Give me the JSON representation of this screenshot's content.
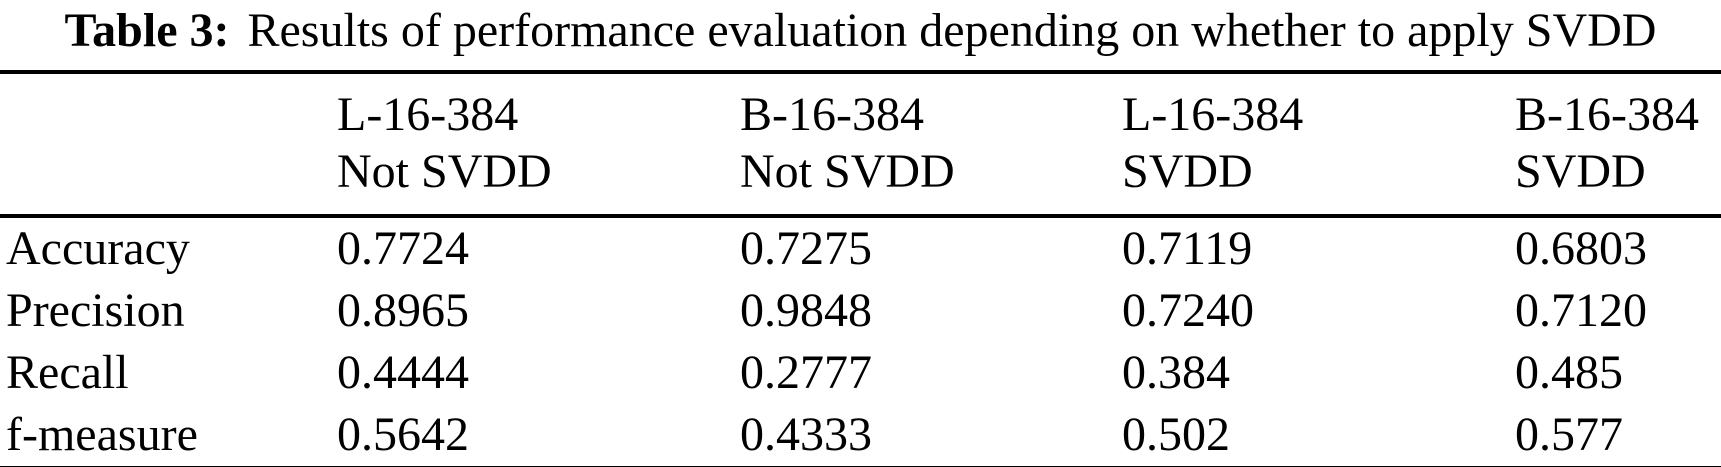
{
  "caption": {
    "label": "Table 3:",
    "text": "Results of performance evaluation depending on whether to apply SVDD"
  },
  "table": {
    "columns": [
      {
        "model": "",
        "condition": ""
      },
      {
        "model": "L-16-384",
        "condition": "Not SVDD"
      },
      {
        "model": "B-16-384",
        "condition": "Not SVDD"
      },
      {
        "model": "L-16-384",
        "condition": "SVDD"
      },
      {
        "model": "B-16-384",
        "condition": "SVDD"
      }
    ],
    "rows": [
      {
        "label": "Accuracy",
        "values": [
          "0.7724",
          "0.7275",
          "0.7119",
          "0.6803"
        ]
      },
      {
        "label": "Precision",
        "values": [
          "0.8965",
          "0.9848",
          "0.7240",
          "0.7120"
        ]
      },
      {
        "label": "Recall",
        "values": [
          "0.4444",
          "0.2777",
          "0.384",
          "0.485"
        ]
      },
      {
        "label": "f-measure",
        "values": [
          "0.5642",
          "0.4333",
          "0.502",
          "0.577"
        ]
      }
    ]
  },
  "colors": {
    "text": "#000000",
    "background": "#ffffff",
    "rule": "#000000"
  },
  "chart_data": {
    "type": "table",
    "title": "Table 3: Results of performance evaluation depending on whether to apply SVDD",
    "columns": [
      "",
      "L-16-384 Not SVDD",
      "B-16-384 Not SVDD",
      "L-16-384 SVDD",
      "B-16-384 SVDD"
    ],
    "rows": [
      [
        "Accuracy",
        "0.7724",
        "0.7275",
        "0.7119",
        "0.6803"
      ],
      [
        "Precision",
        "0.8965",
        "0.9848",
        "0.7240",
        "0.7120"
      ],
      [
        "Recall",
        "0.4444",
        "0.2777",
        "0.384",
        "0.485"
      ],
      [
        "f-measure",
        "0.5642",
        "0.4333",
        "0.502",
        "0.577"
      ]
    ]
  }
}
